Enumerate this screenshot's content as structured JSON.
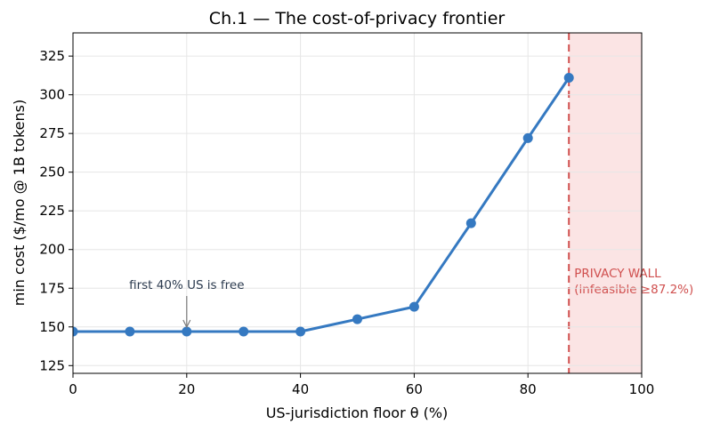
{
  "chart_data": {
    "type": "line",
    "title": "Ch.1 — The cost-of-privacy frontier",
    "xlabel": "US-jurisdiction floor θ (%)",
    "ylabel": "min cost  ($/mo @ 1B tokens)",
    "xlim": [
      0,
      100
    ],
    "ylim": [
      120,
      340
    ],
    "xticks": [
      0,
      20,
      40,
      60,
      80,
      100
    ],
    "yticks": [
      125,
      150,
      175,
      200,
      225,
      250,
      275,
      300,
      325
    ],
    "grid": true,
    "series": [
      {
        "x": [
          0,
          10,
          20,
          30,
          40,
          50,
          60,
          70,
          80,
          87.2
        ],
        "y": [
          147,
          147,
          147,
          147,
          147,
          155,
          163,
          217,
          272,
          311
        ],
        "color": "#3579c1"
      }
    ],
    "annotations": [
      {
        "text": "first 40% US is free",
        "x": 20,
        "y": 147,
        "color": "#2b3a4e"
      }
    ],
    "wall": {
      "x": 87.2,
      "line_color": "#d0504f",
      "fill_color": "#fbe4e4",
      "label_line1": "PRIVACY WALL",
      "label_line2": "(infeasible ≥87.2%)"
    }
  }
}
